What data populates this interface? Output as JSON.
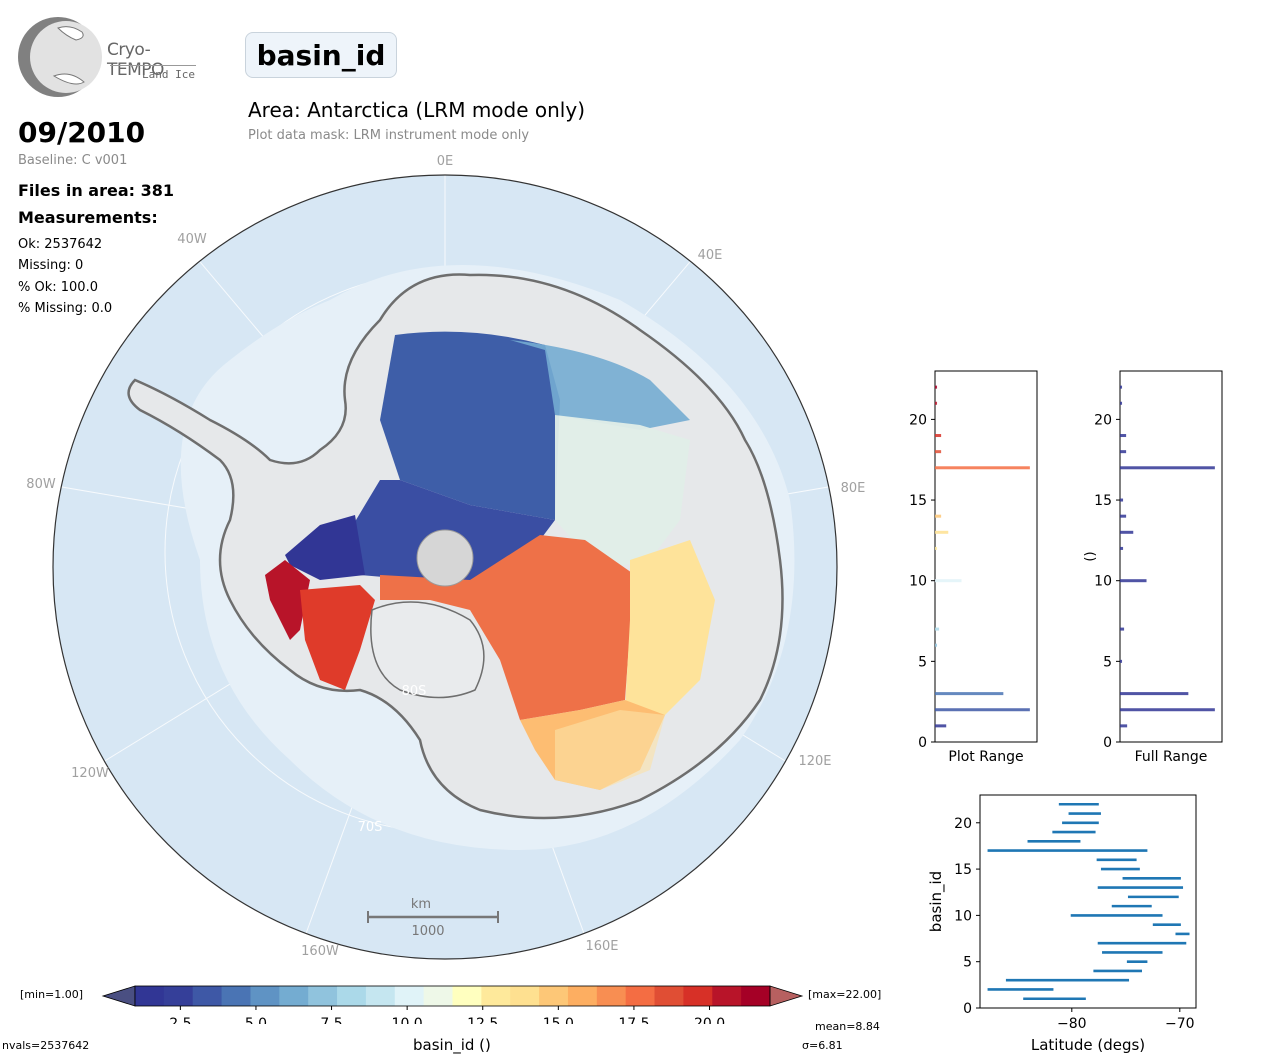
{
  "logo": {
    "name": "Cryo-TEMPO",
    "sub": "Land Ice"
  },
  "title": "basin_id",
  "area": "Area: Antarctica (LRM mode only)",
  "mask": "Plot data mask: LRM instrument mode only",
  "date": "09/2010",
  "baseline": "Baseline: C v001",
  "files": "Files in area: 381",
  "measurements": {
    "heading": "Measurements:",
    "ok": "Ok: 2537642",
    "missing": "Missing: 0",
    "pct_ok": "% Ok: 100.0",
    "pct_missing": "% Missing: 0.0"
  },
  "map": {
    "meridian_labels": [
      "0E",
      "40E",
      "80E",
      "120E",
      "160E",
      "160W",
      "120W",
      "80W",
      "40W"
    ],
    "parallel_labels": [
      "80S",
      "70S"
    ],
    "scale_unit": "km",
    "scale_value": "1000",
    "colors": {
      "ocean": "#d7e7f4",
      "land": "#e6e8ea",
      "coast": "#6e6e6e"
    }
  },
  "colorbar": {
    "min_label": "[min=1.00]",
    "max_label": "[max=22.00]",
    "ticks": [
      "2.5",
      "5.0",
      "7.5",
      "10.0",
      "12.5",
      "15.0",
      "17.5",
      "20.0"
    ],
    "tick_values": [
      2.5,
      5.0,
      7.5,
      10.0,
      12.5,
      15.0,
      17.5,
      20.0
    ],
    "vmin": 1,
    "vmax": 22,
    "label": "basin_id ()",
    "nvals": "nvals=2537642",
    "mean": "mean=8.84",
    "sigma": "σ=6.81",
    "colors": [
      "#313695",
      "#353f99",
      "#3e58a6",
      "#4a74b4",
      "#5f93c4",
      "#74acd1",
      "#90c3dd",
      "#abd9e9",
      "#c5e6f0",
      "#e0f3f8",
      "#eef8e8",
      "#ffffbf",
      "#fee99b",
      "#fee090",
      "#fdc777",
      "#fdae61",
      "#f88e52",
      "#f46d43",
      "#e04e34",
      "#d73027",
      "#b81429",
      "#a50026"
    ]
  },
  "hist_plot": {
    "xlabel": "Plot Range",
    "yticks": [
      "0",
      "5",
      "10",
      "15",
      "20"
    ],
    "bars": [
      {
        "v": 1,
        "w": 0.11,
        "c": "#313695"
      },
      {
        "v": 2,
        "w": 0.93,
        "c": "#3e58a6"
      },
      {
        "v": 3,
        "w": 0.67,
        "c": "#4a74b4"
      },
      {
        "v": 6,
        "w": 0.02,
        "c": "#90c3dd"
      },
      {
        "v": 7,
        "w": 0.04,
        "c": "#abd9e9"
      },
      {
        "v": 10,
        "w": 0.26,
        "c": "#e0f3f8"
      },
      {
        "v": 12,
        "w": 0.02,
        "c": "#fee99b"
      },
      {
        "v": 13,
        "w": 0.13,
        "c": "#fee090"
      },
      {
        "v": 14,
        "w": 0.06,
        "c": "#fdc777"
      },
      {
        "v": 17,
        "w": 0.93,
        "c": "#f46d43"
      },
      {
        "v": 18,
        "w": 0.06,
        "c": "#e04e34"
      },
      {
        "v": 19,
        "w": 0.06,
        "c": "#d73027"
      },
      {
        "v": 21,
        "w": 0.02,
        "c": "#b81429"
      },
      {
        "v": 22,
        "w": 0.02,
        "c": "#a50026"
      }
    ]
  },
  "hist_full": {
    "xlabel": "Full Range",
    "ylabel": "()",
    "yticks": [
      "0",
      "5",
      "10",
      "15",
      "20"
    ],
    "bars": [
      {
        "v": 1,
        "w": 0.07
      },
      {
        "v": 2,
        "w": 0.93
      },
      {
        "v": 3,
        "w": 0.67
      },
      {
        "v": 5,
        "w": 0.02
      },
      {
        "v": 7,
        "w": 0.04
      },
      {
        "v": 10,
        "w": 0.26
      },
      {
        "v": 12,
        "w": 0.03
      },
      {
        "v": 13,
        "w": 0.13
      },
      {
        "v": 14,
        "w": 0.06
      },
      {
        "v": 15,
        "w": 0.03
      },
      {
        "v": 17,
        "w": 0.93
      },
      {
        "v": 18,
        "w": 0.06
      },
      {
        "v": 19,
        "w": 0.06
      },
      {
        "v": 21,
        "w": 0.02
      },
      {
        "v": 22,
        "w": 0.02
      }
    ],
    "color": "#313695"
  },
  "chart_data": {
    "type": "scatter",
    "xlabel": "Latitude (degs)",
    "ylabel": "basin_id",
    "xticks": [
      "−80",
      "−70"
    ],
    "yticks": [
      "0",
      "5",
      "10",
      "15",
      "20"
    ],
    "xlim": [
      -88.5,
      -68.5
    ],
    "ylim": [
      0,
      23
    ],
    "ranges": [
      {
        "id": 1,
        "lat": [
          -84.5,
          -78.7
        ]
      },
      {
        "id": 2,
        "lat": [
          -87.8,
          -81.7
        ]
      },
      {
        "id": 3,
        "lat": [
          -86.1,
          -74.7
        ]
      },
      {
        "id": 4,
        "lat": [
          -78.0,
          -73.5
        ]
      },
      {
        "id": 5,
        "lat": [
          -74.9,
          -73.0
        ]
      },
      {
        "id": 6,
        "lat": [
          -77.2,
          -71.6
        ]
      },
      {
        "id": 7,
        "lat": [
          -77.6,
          -69.4
        ]
      },
      {
        "id": 8,
        "lat": [
          -70.4,
          -69.1
        ]
      },
      {
        "id": 9,
        "lat": [
          -72.5,
          -69.9
        ]
      },
      {
        "id": 10,
        "lat": [
          -80.1,
          -71.6
        ]
      },
      {
        "id": 11,
        "lat": [
          -76.3,
          -72.6
        ]
      },
      {
        "id": 12,
        "lat": [
          -74.8,
          -70.1
        ]
      },
      {
        "id": 13,
        "lat": [
          -77.6,
          -69.7
        ]
      },
      {
        "id": 14,
        "lat": [
          -75.3,
          -69.9
        ]
      },
      {
        "id": 15,
        "lat": [
          -77.3,
          -73.7
        ]
      },
      {
        "id": 16,
        "lat": [
          -77.7,
          -74.0
        ]
      },
      {
        "id": 17,
        "lat": [
          -87.8,
          -73.0
        ]
      },
      {
        "id": 18,
        "lat": [
          -84.1,
          -79.2
        ]
      },
      {
        "id": 19,
        "lat": [
          -81.8,
          -77.8
        ]
      },
      {
        "id": 20,
        "lat": [
          -80.9,
          -77.5
        ]
      },
      {
        "id": 21,
        "lat": [
          -80.3,
          -77.3
        ]
      },
      {
        "id": 22,
        "lat": [
          -81.2,
          -77.5
        ]
      }
    ]
  }
}
